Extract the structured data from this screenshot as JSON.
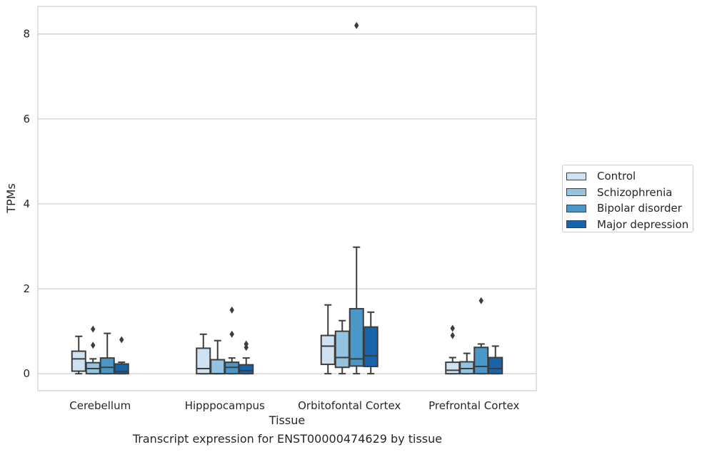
{
  "chart_data": {
    "type": "box",
    "title": "",
    "xlabel": "Tissue",
    "ylabel": "TPMs",
    "ylim": [
      -0.4,
      8.65
    ],
    "yticks": [
      0,
      2,
      4,
      6,
      8
    ],
    "grid": "horizontal",
    "legend_position": "right",
    "categories": [
      "Cerebellum",
      "Hipppocampus",
      "Orbitofontal Cortex",
      "Prefrontal Cortex"
    ],
    "series": [
      {
        "name": "Control",
        "color": "#d0e1f2",
        "boxes": [
          {
            "whisker_low": 0.0,
            "q1": 0.06,
            "median": 0.35,
            "q3": 0.53,
            "whisker_high": 0.88,
            "outliers": []
          },
          {
            "whisker_low": 0.0,
            "q1": 0.0,
            "median": 0.12,
            "q3": 0.6,
            "whisker_high": 0.93,
            "outliers": []
          },
          {
            "whisker_low": 0.0,
            "q1": 0.22,
            "median": 0.65,
            "q3": 0.9,
            "whisker_high": 1.62,
            "outliers": []
          },
          {
            "whisker_low": 0.0,
            "q1": 0.0,
            "median": 0.08,
            "q3": 0.27,
            "whisker_high": 0.38,
            "outliers": [
              0.9,
              1.07
            ]
          }
        ]
      },
      {
        "name": "Schizophrenia",
        "color": "#94c4df",
        "boxes": [
          {
            "whisker_low": 0.0,
            "q1": 0.0,
            "median": 0.12,
            "q3": 0.26,
            "whisker_high": 0.35,
            "outliers": [
              0.67,
              1.05
            ]
          },
          {
            "whisker_low": 0.0,
            "q1": 0.0,
            "median": 0.0,
            "q3": 0.33,
            "whisker_high": 0.78,
            "outliers": []
          },
          {
            "whisker_low": 0.0,
            "q1": 0.15,
            "median": 0.38,
            "q3": 1.0,
            "whisker_high": 1.25,
            "outliers": []
          },
          {
            "whisker_low": 0.0,
            "q1": 0.0,
            "median": 0.12,
            "q3": 0.28,
            "whisker_high": 0.48,
            "outliers": []
          }
        ]
      },
      {
        "name": "Bipolar disorder",
        "color": "#4a98c9",
        "boxes": [
          {
            "whisker_low": 0.0,
            "q1": 0.0,
            "median": 0.15,
            "q3": 0.37,
            "whisker_high": 0.95,
            "outliers": []
          },
          {
            "whisker_low": 0.0,
            "q1": 0.0,
            "median": 0.15,
            "q3": 0.27,
            "whisker_high": 0.37,
            "outliers": [
              0.93,
              1.5
            ]
          },
          {
            "whisker_low": 0.0,
            "q1": 0.18,
            "median": 0.35,
            "q3": 1.53,
            "whisker_high": 2.98,
            "outliers": [
              8.2
            ]
          },
          {
            "whisker_low": 0.0,
            "q1": 0.0,
            "median": 0.17,
            "q3": 0.62,
            "whisker_high": 0.7,
            "outliers": [
              1.72
            ]
          }
        ]
      },
      {
        "name": "Major depression",
        "color": "#1764ab",
        "boxes": [
          {
            "whisker_low": 0.0,
            "q1": 0.0,
            "median": 0.05,
            "q3": 0.23,
            "whisker_high": 0.27,
            "outliers": [
              0.8
            ]
          },
          {
            "whisker_low": 0.0,
            "q1": 0.0,
            "median": 0.07,
            "q3": 0.21,
            "whisker_high": 0.37,
            "outliers": [
              0.62,
              0.7
            ]
          },
          {
            "whisker_low": 0.0,
            "q1": 0.17,
            "median": 0.42,
            "q3": 1.1,
            "whisker_high": 1.45,
            "outliers": []
          },
          {
            "whisker_low": 0.0,
            "q1": 0.0,
            "median": 0.12,
            "q3": 0.38,
            "whisker_high": 0.65,
            "outliers": []
          }
        ]
      }
    ]
  },
  "caption": "Transcript expression for ENST00000474629 by tissue"
}
